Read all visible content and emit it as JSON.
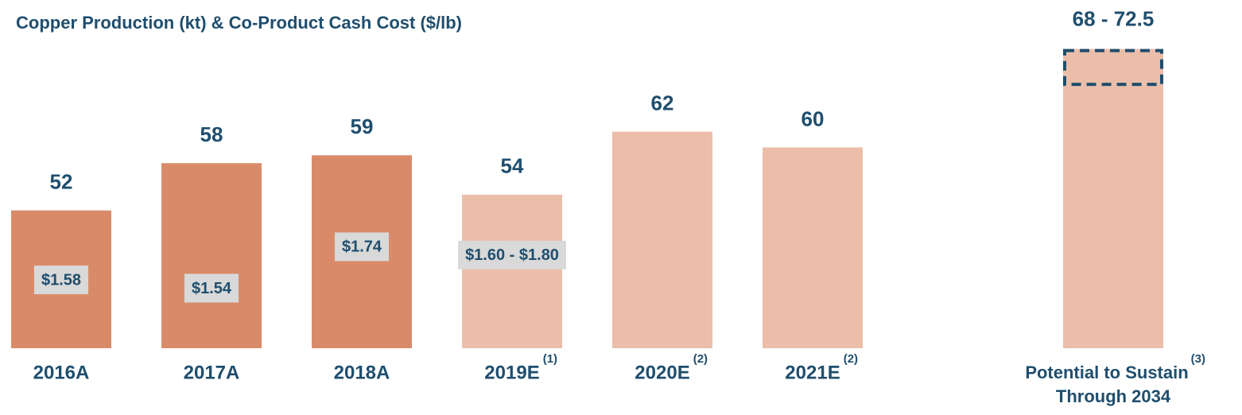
{
  "chart_data": {
    "type": "bar",
    "title": "Copper Production (kt) & Co-Product Cash Cost ($/lb)",
    "categories": [
      "2016A",
      "2017A",
      "2018A",
      "2019E",
      "2020E",
      "2021E"
    ],
    "footnotes": [
      null,
      null,
      null,
      "(1)",
      "(2)",
      "(2)"
    ],
    "values": [
      52,
      58,
      59,
      54,
      62,
      60
    ],
    "colors": [
      "#d98b69",
      "#d98b69",
      "#d98b69",
      "#ebbeaa",
      "#ebbeaa",
      "#ebbeaa"
    ],
    "cost": [
      1.58,
      1.54,
      1.74,
      [
        1.6,
        1.8
      ],
      null,
      null
    ],
    "cost_labels": [
      "$1.58",
      "$1.54",
      "$1.74",
      "$1.60 - $1.80",
      null,
      null
    ],
    "ylim": [
      34.5,
      76.7
    ],
    "y2lim": [
      1.25,
      2.855
    ],
    "potential": {
      "label_lines": [
        "Potential to Sustain",
        "Through 2034"
      ],
      "footnote": "(3)",
      "range": [
        68,
        72.5
      ],
      "range_label": "68 - 72.5",
      "color": "#ebbeaa",
      "range_border_color": "#1f4e6e"
    }
  }
}
